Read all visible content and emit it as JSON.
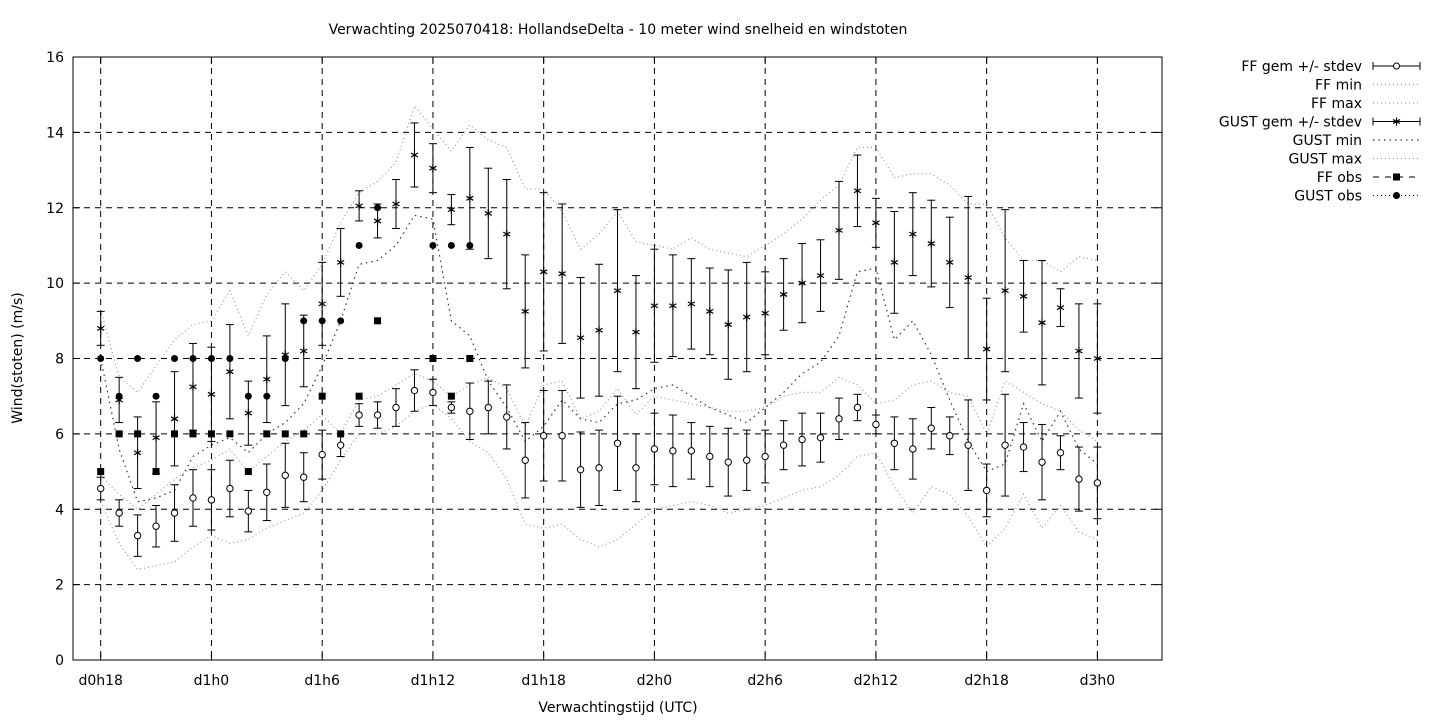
{
  "chart_data": {
    "type": "line",
    "title": "Verwachting 2025070418: HollandseDelta - 10 meter wind snelheid en windstoten",
    "xlabel": "Verwachtingstijd (UTC)",
    "ylabel": "Wind(stoten) (m/s)",
    "ylim": [
      0,
      16
    ],
    "xlim": [
      16.5,
      75.5
    ],
    "grid": true,
    "legend_position": "outside-top-right",
    "x_ticks": [
      {
        "x": 18,
        "label": "d0h18"
      },
      {
        "x": 24,
        "label": "d1h0"
      },
      {
        "x": 30,
        "label": "d1h6"
      },
      {
        "x": 36,
        "label": "d1h12"
      },
      {
        "x": 42,
        "label": "d1h18"
      },
      {
        "x": 48,
        "label": "d2h0"
      },
      {
        "x": 54,
        "label": "d2h6"
      },
      {
        "x": 60,
        "label": "d2h12"
      },
      {
        "x": 66,
        "label": "d2h18"
      },
      {
        "x": 72,
        "label": "d3h0"
      }
    ],
    "y_ticks": [
      0,
      2,
      4,
      6,
      8,
      10,
      12,
      14,
      16
    ],
    "legend": [
      {
        "key": "ff_mean",
        "label": "FF gem +/- stdev"
      },
      {
        "key": "ff_min",
        "label": "FF min"
      },
      {
        "key": "ff_max",
        "label": "FF max"
      },
      {
        "key": "gust_mean",
        "label": "GUST gem +/- stdev"
      },
      {
        "key": "gust_min",
        "label": "GUST min"
      },
      {
        "key": "gust_max",
        "label": "GUST max"
      },
      {
        "key": "ff_obs",
        "label": "FF obs"
      },
      {
        "key": "gust_obs",
        "label": "GUST obs"
      }
    ],
    "series": [
      {
        "key": "ff_mean",
        "x": [
          18,
          19,
          20,
          21,
          22,
          23,
          24,
          25,
          26,
          27,
          28,
          29,
          30,
          31,
          32,
          33,
          34,
          35,
          36,
          37,
          38,
          39,
          40,
          41,
          42,
          43,
          44,
          45,
          46,
          47,
          48,
          49,
          50,
          51,
          52,
          53,
          54,
          55,
          56,
          57,
          58,
          59,
          60,
          61,
          62,
          63,
          64,
          65,
          66,
          67,
          68,
          69,
          70,
          71,
          72
        ],
        "values": [
          4.55,
          3.9,
          3.3,
          3.55,
          3.9,
          4.3,
          4.25,
          4.55,
          3.95,
          4.45,
          4.9,
          4.85,
          5.45,
          5.7,
          6.5,
          6.5,
          6.7,
          7.15,
          7.1,
          6.7,
          6.6,
          6.7,
          6.45,
          5.3,
          5.95,
          5.95,
          5.05,
          5.1,
          5.75,
          5.1,
          5.6,
          5.55,
          5.55,
          5.4,
          5.25,
          5.3,
          5.4,
          5.7,
          5.85,
          5.9,
          6.4,
          6.7,
          6.25,
          5.75,
          5.6,
          6.15,
          5.95,
          5.7,
          4.5,
          5.7,
          5.65,
          5.25,
          5.5,
          4.8,
          4.7
        ],
        "stdev": [
          0.3,
          0.35,
          0.55,
          0.55,
          0.75,
          0.75,
          0.8,
          0.75,
          0.55,
          0.75,
          0.85,
          0.65,
          0.65,
          0.3,
          0.3,
          0.35,
          0.5,
          0.55,
          0.35,
          0.15,
          0.75,
          0.7,
          0.85,
          1.0,
          1.2,
          1.2,
          1.0,
          1.0,
          1.25,
          0.9,
          0.95,
          0.95,
          0.75,
          0.8,
          0.9,
          0.8,
          0.7,
          0.65,
          0.7,
          0.65,
          0.55,
          0.35,
          0.25,
          0.7,
          0.8,
          0.55,
          0.5,
          1.2,
          0.7,
          1.35,
          0.65,
          1.0,
          0.45,
          0.85,
          0.95
        ]
      },
      {
        "key": "ff_min",
        "x": [
          18,
          19,
          20,
          21,
          22,
          23,
          24,
          25,
          26,
          27,
          28,
          29,
          30,
          31,
          32,
          33,
          34,
          35,
          36,
          37,
          38,
          39,
          40,
          41,
          42,
          43,
          44,
          45,
          46,
          47,
          48,
          49,
          50,
          51,
          52,
          53,
          54,
          55,
          56,
          57,
          58,
          59,
          60,
          61,
          62,
          63,
          64,
          65,
          66,
          67,
          68,
          69,
          70,
          71,
          72
        ],
        "values": [
          4.2,
          3.1,
          2.4,
          2.5,
          2.6,
          3.0,
          3.3,
          3.1,
          3.2,
          3.5,
          3.7,
          3.9,
          4.5,
          5.3,
          6.0,
          6.0,
          6.2,
          6.6,
          6.8,
          6.4,
          5.8,
          5.5,
          4.8,
          3.6,
          3.5,
          3.6,
          3.2,
          3.0,
          3.2,
          3.6,
          4.0,
          4.1,
          4.2,
          4.1,
          3.9,
          4.0,
          4.1,
          4.3,
          4.5,
          4.6,
          4.9,
          5.4,
          5.5,
          4.6,
          3.9,
          4.6,
          4.4,
          3.8,
          3.0,
          3.5,
          4.4,
          3.5,
          4.1,
          3.4,
          3.2
        ]
      },
      {
        "key": "ff_max",
        "x": [
          18,
          19,
          20,
          21,
          22,
          23,
          24,
          25,
          26,
          27,
          28,
          29,
          30,
          31,
          32,
          33,
          34,
          35,
          36,
          37,
          38,
          39,
          40,
          41,
          42,
          43,
          44,
          45,
          46,
          47,
          48,
          49,
          50,
          51,
          52,
          53,
          54,
          55,
          56,
          57,
          58,
          59,
          60,
          61,
          62,
          63,
          64,
          65,
          66,
          67,
          68,
          69,
          70,
          71,
          72
        ],
        "values": [
          4.9,
          4.4,
          4.0,
          4.4,
          4.8,
          5.1,
          5.3,
          5.6,
          5.0,
          5.4,
          5.8,
          6.1,
          6.5,
          6.0,
          6.9,
          7.0,
          7.3,
          7.6,
          7.4,
          7.0,
          7.3,
          7.5,
          7.2,
          6.2,
          7.3,
          7.4,
          6.4,
          6.6,
          7.2,
          6.5,
          7.0,
          6.9,
          6.8,
          6.7,
          6.6,
          6.6,
          6.7,
          7.0,
          7.1,
          7.1,
          7.5,
          7.3,
          6.8,
          6.9,
          7.3,
          7.4,
          7.1,
          7.0,
          6.0,
          7.4,
          7.1,
          6.8,
          6.6,
          6.1,
          5.8
        ]
      },
      {
        "key": "gust_mean",
        "x": [
          18,
          19,
          20,
          21,
          22,
          23,
          24,
          25,
          26,
          27,
          28,
          29,
          30,
          31,
          32,
          33,
          34,
          35,
          36,
          37,
          38,
          39,
          40,
          41,
          42,
          43,
          44,
          45,
          46,
          47,
          48,
          49,
          50,
          51,
          52,
          53,
          54,
          55,
          56,
          57,
          58,
          59,
          60,
          61,
          62,
          63,
          64,
          65,
          66,
          67,
          68,
          69,
          70,
          71,
          72
        ],
        "values": [
          8.8,
          6.9,
          5.5,
          5.9,
          6.4,
          7.25,
          7.05,
          7.65,
          6.55,
          7.45,
          8.1,
          8.2,
          9.45,
          10.55,
          12.05,
          11.65,
          12.1,
          13.4,
          13.05,
          11.95,
          12.25,
          11.85,
          11.3,
          9.25,
          10.3,
          10.25,
          8.55,
          8.75,
          9.8,
          8.7,
          9.4,
          9.4,
          9.45,
          9.25,
          8.9,
          9.1,
          9.2,
          9.7,
          10.0,
          10.2,
          11.4,
          12.45,
          11.6,
          10.55,
          11.3,
          11.05,
          10.55,
          10.15,
          8.25,
          9.8,
          9.65,
          8.95,
          9.35,
          8.2,
          8.0
        ],
        "stdev": [
          0.45,
          0.6,
          0.95,
          0.95,
          1.25,
          1.15,
          1.25,
          1.25,
          0.85,
          1.15,
          1.35,
          0.95,
          1.1,
          0.9,
          0.4,
          0.45,
          0.65,
          0.85,
          0.65,
          0.4,
          1.35,
          1.2,
          1.45,
          1.5,
          2.1,
          1.85,
          1.6,
          1.75,
          2.15,
          1.5,
          1.5,
          1.35,
          1.2,
          1.15,
          1.45,
          1.45,
          1.1,
          0.95,
          1.05,
          0.95,
          1.3,
          0.95,
          0.65,
          1.35,
          1.1,
          1.15,
          1.2,
          2.15,
          1.35,
          2.15,
          0.95,
          1.65,
          0.5,
          1.25,
          1.45
        ]
      },
      {
        "key": "gust_min",
        "x": [
          18,
          19,
          20,
          21,
          22,
          23,
          24,
          25,
          26,
          27,
          28,
          29,
          30,
          31,
          32,
          33,
          34,
          35,
          36,
          37,
          38,
          39,
          40,
          41,
          42,
          43,
          44,
          45,
          46,
          47,
          48,
          49,
          50,
          51,
          52,
          53,
          54,
          55,
          56,
          57,
          58,
          59,
          60,
          61,
          62,
          63,
          64,
          65,
          66,
          67,
          68,
          69,
          70,
          71,
          72
        ],
        "values": [
          8.0,
          5.6,
          4.2,
          4.3,
          4.5,
          5.4,
          5.7,
          5.9,
          5.5,
          6.0,
          6.3,
          6.8,
          7.8,
          9.0,
          10.5,
          10.6,
          11.0,
          11.8,
          11.7,
          9.0,
          8.6,
          7.4,
          6.7,
          5.8,
          6.2,
          6.9,
          6.4,
          6.3,
          6.8,
          6.9,
          7.2,
          7.3,
          7.0,
          6.7,
          6.5,
          6.3,
          6.7,
          7.1,
          7.6,
          7.9,
          8.6,
          10.3,
          10.4,
          8.5,
          9.0,
          8.1,
          6.9,
          5.8,
          5.0,
          5.2,
          6.8,
          5.8,
          6.6,
          5.6,
          5.2
        ]
      },
      {
        "key": "gust_max",
        "x": [
          18,
          19,
          20,
          21,
          22,
          23,
          24,
          25,
          26,
          27,
          28,
          29,
          30,
          31,
          32,
          33,
          34,
          35,
          36,
          37,
          38,
          39,
          40,
          41,
          42,
          43,
          44,
          45,
          46,
          47,
          48,
          49,
          50,
          51,
          52,
          53,
          54,
          55,
          56,
          57,
          58,
          59,
          60,
          61,
          62,
          63,
          64,
          65,
          66,
          67,
          68,
          69,
          70,
          71,
          72
        ],
        "values": [
          9.3,
          7.5,
          7.1,
          7.8,
          8.5,
          8.9,
          9.0,
          9.8,
          8.6,
          9.7,
          10.3,
          9.8,
          10.5,
          11.6,
          12.4,
          12.7,
          13.2,
          14.7,
          14.1,
          13.5,
          14.2,
          13.8,
          13.6,
          12.5,
          12.5,
          11.9,
          10.9,
          11.3,
          11.9,
          11.1,
          11.0,
          10.9,
          11.2,
          10.9,
          10.8,
          10.7,
          11.0,
          11.3,
          11.7,
          12.2,
          12.6,
          13.6,
          13.6,
          12.8,
          12.9,
          12.9,
          12.6,
          12.1,
          12.1,
          11.2,
          10.6,
          10.6,
          10.3,
          10.7,
          10.6
        ]
      },
      {
        "key": "ff_obs",
        "x": [
          18,
          19,
          20,
          21,
          22,
          23,
          24,
          25,
          26,
          27,
          28,
          29,
          30,
          31,
          32,
          33,
          36,
          37,
          38
        ],
        "values": [
          5,
          6,
          6,
          5,
          6,
          6,
          6,
          6,
          5,
          6,
          6,
          6,
          7,
          6,
          7,
          9,
          8,
          7,
          8
        ]
      },
      {
        "key": "gust_obs",
        "x": [
          18,
          19,
          20,
          21,
          22,
          23,
          24,
          25,
          26,
          27,
          28,
          29,
          30,
          31,
          32,
          33,
          36,
          37,
          38
        ],
        "values": [
          8,
          7,
          8,
          7,
          8,
          8,
          8,
          8,
          7,
          7,
          8,
          9,
          9,
          9,
          11,
          12,
          11,
          11,
          11
        ]
      }
    ]
  }
}
